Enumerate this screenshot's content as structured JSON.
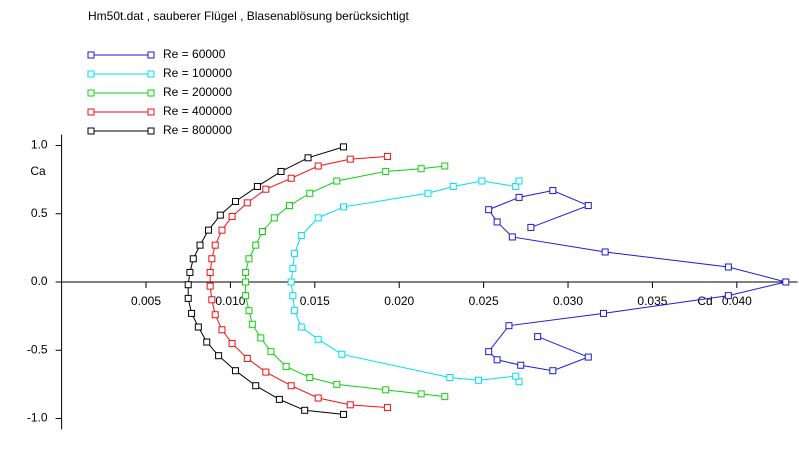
{
  "chart_data": {
    "type": "line",
    "title": "Hm50t.dat , sauberer Flügel , Blasenablösung berücksichtigt",
    "x_label": "Cd",
    "y_label": "Ca",
    "xlim": [
      0,
      0.0436
    ],
    "ylim": [
      -1.08,
      1.08
    ],
    "xticks": [
      0.005,
      {
        "value": 0.01,
        "label": "0.010"
      },
      0.015,
      {
        "value": 0.02,
        "label": "0.020"
      },
      0.025,
      {
        "value": 0.03,
        "label": "0.030"
      },
      0.035,
      {
        "value": 0.04,
        "label": "0.040"
      }
    ],
    "yticks": [
      {
        "value": -1,
        "label": "-1.0"
      },
      -0.5,
      {
        "value": 0,
        "label": "0.0"
      },
      0.5,
      {
        "value": 1,
        "label": "1.0"
      }
    ],
    "grid": false,
    "legend": "top-left",
    "series": [
      {
        "name": "Re = 60000",
        "color": "#1a1adc",
        "x": [
          0.0282,
          0.0312,
          0.0291,
          0.0272,
          0.0258,
          0.0253,
          0.0265,
          0.0321,
          0.0395,
          0.0429,
          0.0395,
          0.0322,
          0.0267,
          0.0258,
          0.0253,
          0.0271,
          0.0291,
          0.0312,
          0.0278
        ],
        "values": [
          -0.4,
          -0.55,
          -0.65,
          -0.61,
          -0.57,
          -0.51,
          -0.32,
          -0.23,
          -0.1,
          0,
          0.11,
          0.22,
          0.33,
          0.44,
          0.53,
          0.62,
          0.67,
          0.56,
          0.4
        ]
      },
      {
        "name": "Re = 100000",
        "color": "#00e0f0",
        "x": [
          0.0271,
          0.0269,
          0.0247,
          0.023,
          0.0166,
          0.0152,
          0.0142,
          0.0138,
          0.0137,
          0.0136,
          0.0137,
          0.0138,
          0.0142,
          0.0152,
          0.0167,
          0.0217,
          0.0232,
          0.0249,
          0.0269,
          0.0271
        ],
        "values": [
          -0.73,
          -0.69,
          -0.72,
          -0.7,
          -0.53,
          -0.42,
          -0.33,
          -0.21,
          -0.1,
          0,
          0.1,
          0.21,
          0.34,
          0.47,
          0.55,
          0.65,
          0.7,
          0.74,
          0.7,
          0.74
        ]
      },
      {
        "name": "Re = 200000",
        "color": "#10d010",
        "x": [
          0.0227,
          0.0213,
          0.0192,
          0.0163,
          0.0147,
          0.0133,
          0.0124,
          0.0118,
          0.0113,
          0.0111,
          0.0109,
          0.0109,
          0.0109,
          0.0111,
          0.0115,
          0.0119,
          0.0126,
          0.0135,
          0.0147,
          0.0163,
          0.0192,
          0.0213,
          0.0227
        ],
        "values": [
          -0.84,
          -0.82,
          -0.79,
          -0.75,
          -0.7,
          -0.62,
          -0.51,
          -0.41,
          -0.31,
          -0.21,
          -0.1,
          0,
          0.07,
          0.17,
          0.27,
          0.37,
          0.47,
          0.56,
          0.65,
          0.74,
          0.81,
          0.83,
          0.85
        ]
      },
      {
        "name": "Re = 400000",
        "color": "#f01010",
        "x": [
          0.0193,
          0.0171,
          0.0152,
          0.0136,
          0.0121,
          0.011,
          0.0101,
          0.0095,
          0.0091,
          0.0089,
          0.0088,
          0.0088,
          0.0089,
          0.0091,
          0.0095,
          0.0101,
          0.011,
          0.0121,
          0.0136,
          0.0152,
          0.0171,
          0.0193
        ],
        "values": [
          -0.92,
          -0.9,
          -0.85,
          -0.76,
          -0.66,
          -0.56,
          -0.45,
          -0.35,
          -0.24,
          -0.13,
          -0.03,
          0.07,
          0.17,
          0.27,
          0.38,
          0.48,
          0.58,
          0.68,
          0.76,
          0.85,
          0.9,
          0.92
        ]
      },
      {
        "name": "Re = 800000",
        "color": "#000000",
        "x": [
          0.0167,
          0.0144,
          0.0129,
          0.0115,
          0.0103,
          0.0093,
          0.0086,
          0.0081,
          0.0077,
          0.0075,
          0.0075,
          0.0076,
          0.0078,
          0.0082,
          0.0087,
          0.0094,
          0.0103,
          0.0116,
          0.013,
          0.0146,
          0.0167
        ],
        "values": [
          -0.97,
          -0.94,
          -0.86,
          -0.76,
          -0.65,
          -0.54,
          -0.44,
          -0.33,
          -0.23,
          -0.12,
          -0.02,
          0.07,
          0.17,
          0.27,
          0.38,
          0.49,
          0.59,
          0.7,
          0.81,
          0.91,
          0.99
        ]
      }
    ]
  }
}
